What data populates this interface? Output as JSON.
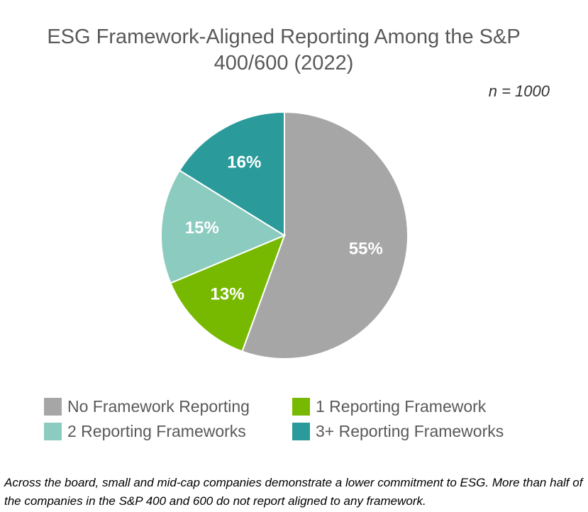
{
  "chart_data": {
    "type": "pie",
    "title": "ESG Framework-Aligned Reporting Among the S&P 400/600 (2022)",
    "annotation": "n = 1000",
    "categories": [
      "No Framework Reporting",
      "1 Reporting Framework",
      "2 Reporting Frameworks",
      "3+ Reporting Frameworks"
    ],
    "values": [
      55,
      13,
      15,
      16
    ],
    "value_labels": [
      "55%",
      "13%",
      "15%",
      "16%"
    ],
    "colors": [
      "#a6a6a6",
      "#77b900",
      "#8ccbbf",
      "#2a9a9a"
    ],
    "caption": "Across the board, small and mid-cap companies demonstrate a lower commitment to ESG. More than half of the companies in the S&P 400 and 600 do not report aligned to any framework."
  }
}
